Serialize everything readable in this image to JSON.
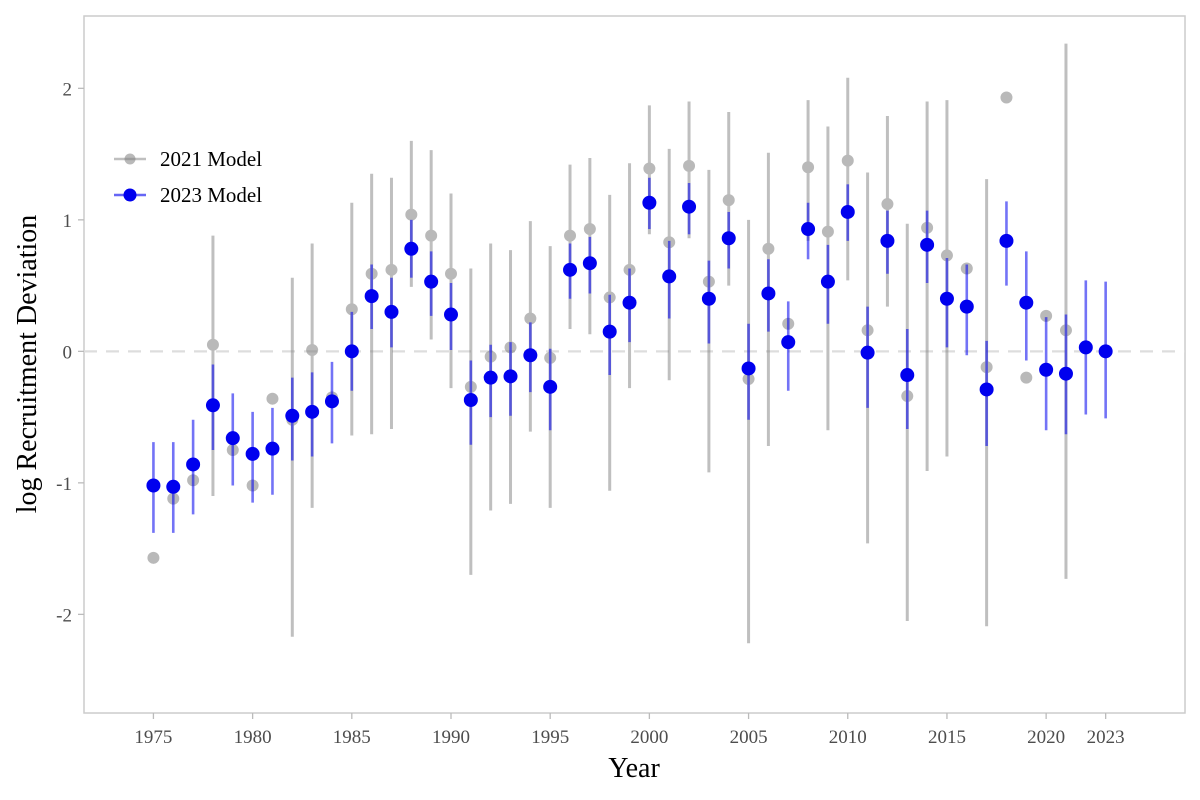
{
  "chart_data": {
    "type": "scatter",
    "xlabel": "Year",
    "ylabel": "log Recruitment Deviation",
    "xlim": [
      1971.5,
      2027.0
    ],
    "ylim": [
      -2.75,
      2.55
    ],
    "x_ticks": [
      1975,
      1980,
      1985,
      1990,
      1995,
      2000,
      2005,
      2010,
      2015,
      2020,
      2023
    ],
    "y_ticks": [
      -2,
      -1,
      0,
      1,
      2
    ],
    "reference_line": {
      "y": 0,
      "style": "dashed",
      "color": "#d9d9d9"
    },
    "grid": false,
    "legend_placement": "top-left",
    "series": [
      {
        "name": "2021 Model",
        "color": "#808080",
        "opacity": 0.55,
        "points": [
          {
            "x": 1975,
            "y": -1.57
          },
          {
            "x": 1976,
            "y": -1.12
          },
          {
            "x": 1977,
            "y": -0.98
          },
          {
            "x": 1978,
            "y": 0.05,
            "lo": -1.1,
            "hi": 0.88
          },
          {
            "x": 1979,
            "y": -0.75
          },
          {
            "x": 1980,
            "y": -1.02
          },
          {
            "x": 1981,
            "y": -0.36
          },
          {
            "x": 1982,
            "y": -0.52,
            "lo": -2.17,
            "hi": 0.56
          },
          {
            "x": 1983,
            "y": 0.01,
            "lo": -1.19,
            "hi": 0.82
          },
          {
            "x": 1984,
            "y": -0.35
          },
          {
            "x": 1985,
            "y": 0.32,
            "lo": -0.64,
            "hi": 1.13
          },
          {
            "x": 1986,
            "y": 0.59,
            "lo": -0.63,
            "hi": 1.35
          },
          {
            "x": 1987,
            "y": 0.62,
            "lo": -0.59,
            "hi": 1.32
          },
          {
            "x": 1988,
            "y": 1.04,
            "lo": 0.49,
            "hi": 1.6
          },
          {
            "x": 1989,
            "y": 0.88,
            "lo": 0.09,
            "hi": 1.53
          },
          {
            "x": 1990,
            "y": 0.59,
            "lo": -0.28,
            "hi": 1.2
          },
          {
            "x": 1991,
            "y": -0.27,
            "lo": -1.7,
            "hi": 0.63
          },
          {
            "x": 1992,
            "y": -0.04,
            "lo": -1.21,
            "hi": 0.82
          },
          {
            "x": 1993,
            "y": 0.03,
            "lo": -1.16,
            "hi": 0.77
          },
          {
            "x": 1994,
            "y": 0.25,
            "lo": -0.61,
            "hi": 0.99
          },
          {
            "x": 1995,
            "y": -0.05,
            "lo": -1.19,
            "hi": 0.8
          },
          {
            "x": 1996,
            "y": 0.88,
            "lo": 0.17,
            "hi": 1.42
          },
          {
            "x": 1997,
            "y": 0.93,
            "lo": 0.13,
            "hi": 1.47
          },
          {
            "x": 1998,
            "y": 0.41,
            "lo": -1.06,
            "hi": 1.19
          },
          {
            "x": 1999,
            "y": 0.62,
            "lo": -0.28,
            "hi": 1.43
          },
          {
            "x": 2000,
            "y": 1.39,
            "lo": 0.89,
            "hi": 1.87
          },
          {
            "x": 2001,
            "y": 0.83,
            "lo": -0.22,
            "hi": 1.54
          },
          {
            "x": 2002,
            "y": 1.41,
            "lo": 0.86,
            "hi": 1.9
          },
          {
            "x": 2003,
            "y": 0.53,
            "lo": -0.92,
            "hi": 1.38
          },
          {
            "x": 2004,
            "y": 1.15,
            "lo": 0.5,
            "hi": 1.82
          },
          {
            "x": 2005,
            "y": -0.21,
            "lo": -2.22,
            "hi": 1.0
          },
          {
            "x": 2006,
            "y": 0.78,
            "lo": -0.72,
            "hi": 1.51
          },
          {
            "x": 2007,
            "y": 0.21
          },
          {
            "x": 2008,
            "y": 1.4,
            "lo": 0.84,
            "hi": 1.91
          },
          {
            "x": 2009,
            "y": 0.91,
            "lo": -0.6,
            "hi": 1.71
          },
          {
            "x": 2010,
            "y": 1.45,
            "lo": 0.54,
            "hi": 2.08
          },
          {
            "x": 2011,
            "y": 0.16,
            "lo": -1.46,
            "hi": 1.36
          },
          {
            "x": 2012,
            "y": 1.12,
            "lo": 0.34,
            "hi": 1.79
          },
          {
            "x": 2013,
            "y": -0.34,
            "lo": -2.05,
            "hi": 0.97
          },
          {
            "x": 2014,
            "y": 0.94,
            "lo": -0.91,
            "hi": 1.9
          },
          {
            "x": 2015,
            "y": 0.73,
            "lo": -0.8,
            "hi": 1.91
          },
          {
            "x": 2016,
            "y": 0.63
          },
          {
            "x": 2017,
            "y": -0.12,
            "lo": -2.09,
            "hi": 1.31
          },
          {
            "x": 2018,
            "y": 1.93
          },
          {
            "x": 2019,
            "y": -0.2
          },
          {
            "x": 2020,
            "y": 0.27
          },
          {
            "x": 2021,
            "y": 0.16,
            "lo": -1.73,
            "hi": 2.34
          }
        ]
      },
      {
        "name": "2023 Model",
        "color": "#0000ee",
        "opacity": 1,
        "points": [
          {
            "x": 1975,
            "y": -1.02,
            "lo": -1.38,
            "hi": -0.69
          },
          {
            "x": 1976,
            "y": -1.03,
            "lo": -1.38,
            "hi": -0.69
          },
          {
            "x": 1977,
            "y": -0.86,
            "lo": -1.24,
            "hi": -0.52
          },
          {
            "x": 1978,
            "y": -0.41,
            "lo": -0.75,
            "hi": -0.1
          },
          {
            "x": 1979,
            "y": -0.66,
            "lo": -1.02,
            "hi": -0.32
          },
          {
            "x": 1980,
            "y": -0.78,
            "lo": -1.15,
            "hi": -0.46
          },
          {
            "x": 1981,
            "y": -0.74,
            "lo": -1.09,
            "hi": -0.43
          },
          {
            "x": 1982,
            "y": -0.49,
            "lo": -0.83,
            "hi": -0.2
          },
          {
            "x": 1983,
            "y": -0.46,
            "lo": -0.8,
            "hi": -0.16
          },
          {
            "x": 1984,
            "y": -0.38,
            "lo": -0.7,
            "hi": -0.08
          },
          {
            "x": 1985,
            "y": 0.0,
            "lo": -0.3,
            "hi": 0.3
          },
          {
            "x": 1986,
            "y": 0.42,
            "lo": 0.17,
            "hi": 0.66
          },
          {
            "x": 1987,
            "y": 0.3,
            "lo": 0.03,
            "hi": 0.56
          },
          {
            "x": 1988,
            "y": 0.78,
            "lo": 0.56,
            "hi": 1.0
          },
          {
            "x": 1989,
            "y": 0.53,
            "lo": 0.27,
            "hi": 0.76
          },
          {
            "x": 1990,
            "y": 0.28,
            "lo": 0.01,
            "hi": 0.52
          },
          {
            "x": 1991,
            "y": -0.37,
            "lo": -0.71,
            "hi": -0.07
          },
          {
            "x": 1992,
            "y": -0.2,
            "lo": -0.5,
            "hi": 0.05
          },
          {
            "x": 1993,
            "y": -0.19,
            "lo": -0.49,
            "hi": 0.07
          },
          {
            "x": 1994,
            "y": -0.03,
            "lo": -0.31,
            "hi": 0.22
          },
          {
            "x": 1995,
            "y": -0.27,
            "lo": -0.6,
            "hi": 0.02
          },
          {
            "x": 1996,
            "y": 0.62,
            "lo": 0.4,
            "hi": 0.82
          },
          {
            "x": 1997,
            "y": 0.67,
            "lo": 0.44,
            "hi": 0.87
          },
          {
            "x": 1998,
            "y": 0.15,
            "lo": -0.18,
            "hi": 0.43
          },
          {
            "x": 1999,
            "y": 0.37,
            "lo": 0.07,
            "hi": 0.63
          },
          {
            "x": 2000,
            "y": 1.13,
            "lo": 0.93,
            "hi": 1.32
          },
          {
            "x": 2001,
            "y": 0.57,
            "lo": 0.25,
            "hi": 0.84
          },
          {
            "x": 2002,
            "y": 1.1,
            "lo": 0.89,
            "hi": 1.28
          },
          {
            "x": 2003,
            "y": 0.4,
            "lo": 0.06,
            "hi": 0.69
          },
          {
            "x": 2004,
            "y": 0.86,
            "lo": 0.63,
            "hi": 1.06
          },
          {
            "x": 2005,
            "y": -0.13,
            "lo": -0.52,
            "hi": 0.21
          },
          {
            "x": 2006,
            "y": 0.44,
            "lo": 0.15,
            "hi": 0.7
          },
          {
            "x": 2007,
            "y": 0.07,
            "lo": -0.3,
            "hi": 0.38
          },
          {
            "x": 2008,
            "y": 0.93,
            "lo": 0.7,
            "hi": 1.13
          },
          {
            "x": 2009,
            "y": 0.53,
            "lo": 0.21,
            "hi": 0.81
          },
          {
            "x": 2010,
            "y": 1.06,
            "lo": 0.84,
            "hi": 1.27
          },
          {
            "x": 2011,
            "y": -0.01,
            "lo": -0.43,
            "hi": 0.34
          },
          {
            "x": 2012,
            "y": 0.84,
            "lo": 0.59,
            "hi": 1.07
          },
          {
            "x": 2013,
            "y": -0.18,
            "lo": -0.59,
            "hi": 0.17
          },
          {
            "x": 2014,
            "y": 0.81,
            "lo": 0.52,
            "hi": 1.07
          },
          {
            "x": 2015,
            "y": 0.4,
            "lo": 0.03,
            "hi": 0.71
          },
          {
            "x": 2016,
            "y": 0.34,
            "lo": -0.03,
            "hi": 0.66
          },
          {
            "x": 2017,
            "y": -0.29,
            "lo": -0.72,
            "hi": 0.08
          },
          {
            "x": 2018,
            "y": 0.84,
            "lo": 0.5,
            "hi": 1.14
          },
          {
            "x": 2019,
            "y": 0.37,
            "lo": -0.07,
            "hi": 0.76
          },
          {
            "x": 2020,
            "y": -0.14,
            "lo": -0.6,
            "hi": 0.26
          },
          {
            "x": 2021,
            "y": -0.17,
            "lo": -0.63,
            "hi": 0.28
          },
          {
            "x": 2022,
            "y": 0.03,
            "lo": -0.48,
            "hi": 0.54
          },
          {
            "x": 2023,
            "y": 0.0,
            "lo": -0.51,
            "hi": 0.53
          }
        ]
      }
    ]
  }
}
